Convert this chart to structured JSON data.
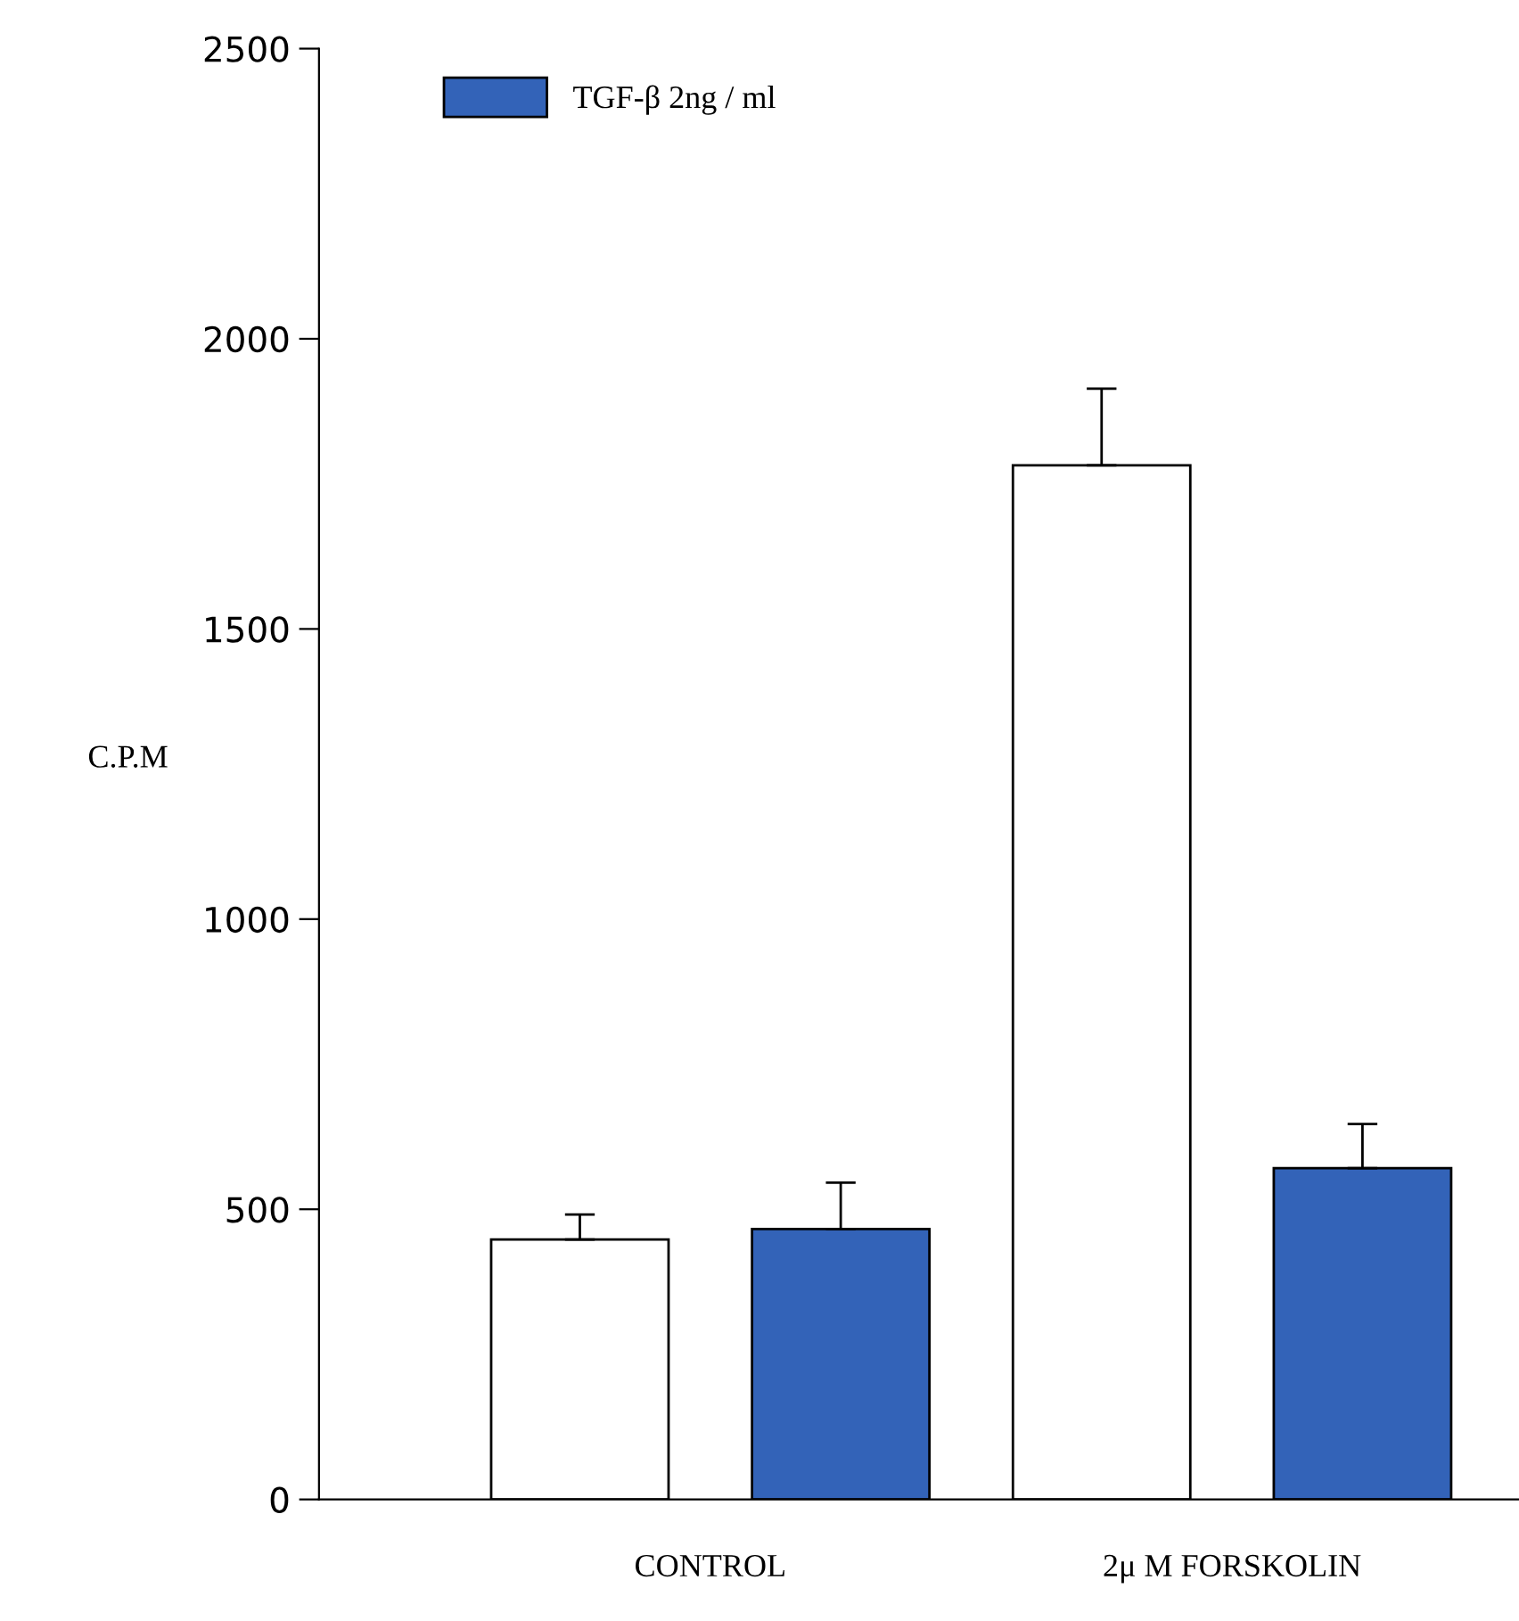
{
  "chart_data": {
    "type": "bar",
    "ylabel": "C.P.M",
    "categories": [
      "CONTROL",
      "2μ M FORSKOLIN"
    ],
    "series": [
      {
        "color": "#ffffff",
        "values": [
          448,
          1782
        ],
        "errors": [
          [
            448,
            491
          ],
          [
            1782,
            1914
          ]
        ]
      },
      {
        "name": "TGF-β 2ng / ml",
        "color": "#3363b8",
        "values": [
          466,
          571
        ],
        "errors": [
          [
            466,
            546
          ],
          [
            571,
            647
          ]
        ]
      }
    ],
    "ylim": [
      0,
      2500
    ],
    "yticks": [
      0,
      500,
      1000,
      1500,
      2000,
      2500
    ],
    "legend": "top left",
    "grid": false
  }
}
